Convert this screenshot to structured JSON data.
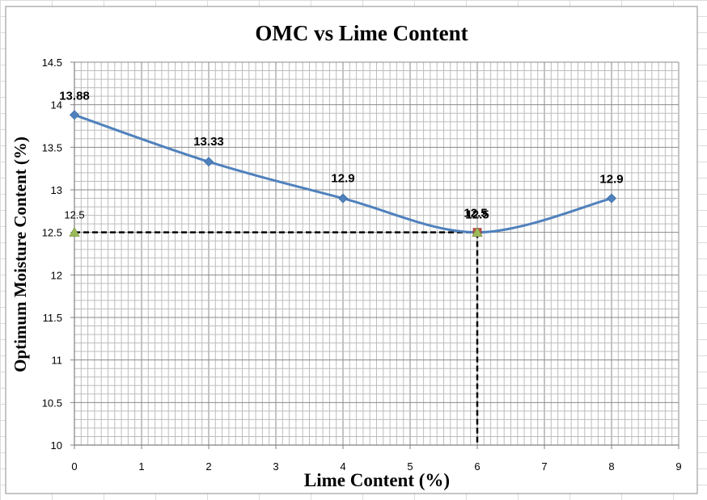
{
  "chart_data": {
    "type": "line",
    "title": "OMC vs Lime Content",
    "xlabel": "Lime Content (%)",
    "ylabel": "Optimum Moisture Content (%)",
    "xlim": [
      0,
      9
    ],
    "ylim": [
      10,
      14.5
    ],
    "x_major_step": 1,
    "y_major_step": 0.5,
    "x_ticks": [
      "0",
      "1",
      "2",
      "3",
      "4",
      "5",
      "6",
      "7",
      "8",
      "9"
    ],
    "y_ticks": [
      "10",
      "10.5",
      "11",
      "11.5",
      "12",
      "12.5",
      "13",
      "13.5",
      "14",
      "14.5"
    ],
    "grid": true,
    "legend": "none",
    "series": [
      {
        "marker": "diamond",
        "smooth": true,
        "color": "#4F81BD",
        "points": [
          {
            "x": 0,
            "y": 13.88,
            "label": "13.88"
          },
          {
            "x": 2,
            "y": 13.33,
            "label": "13.33"
          },
          {
            "x": 4,
            "y": 12.9,
            "label": "12.9"
          },
          {
            "x": 6,
            "y": 12.5,
            "label": "12.5"
          },
          {
            "x": 8,
            "y": 12.9,
            "label": "12.9"
          }
        ]
      }
    ],
    "reference_points": [
      {
        "x": 0,
        "y": 12.5,
        "label": "12.5",
        "marker": "triangle",
        "color": "#9BBB59"
      },
      {
        "x": 6,
        "y": 12.5,
        "label": "12.5",
        "marker": "square",
        "color": "#C0504D"
      },
      {
        "x": 6,
        "y": 12.5,
        "label": "",
        "marker": "triangle",
        "color": "#9BBB59"
      }
    ],
    "reference_lines": [
      {
        "from": [
          0,
          12.5
        ],
        "to": [
          6,
          12.5
        ],
        "style": "dashed",
        "color": "#000000"
      },
      {
        "from": [
          6,
          12.5
        ],
        "to": [
          6,
          10
        ],
        "style": "dashed",
        "color": "#000000"
      }
    ]
  }
}
